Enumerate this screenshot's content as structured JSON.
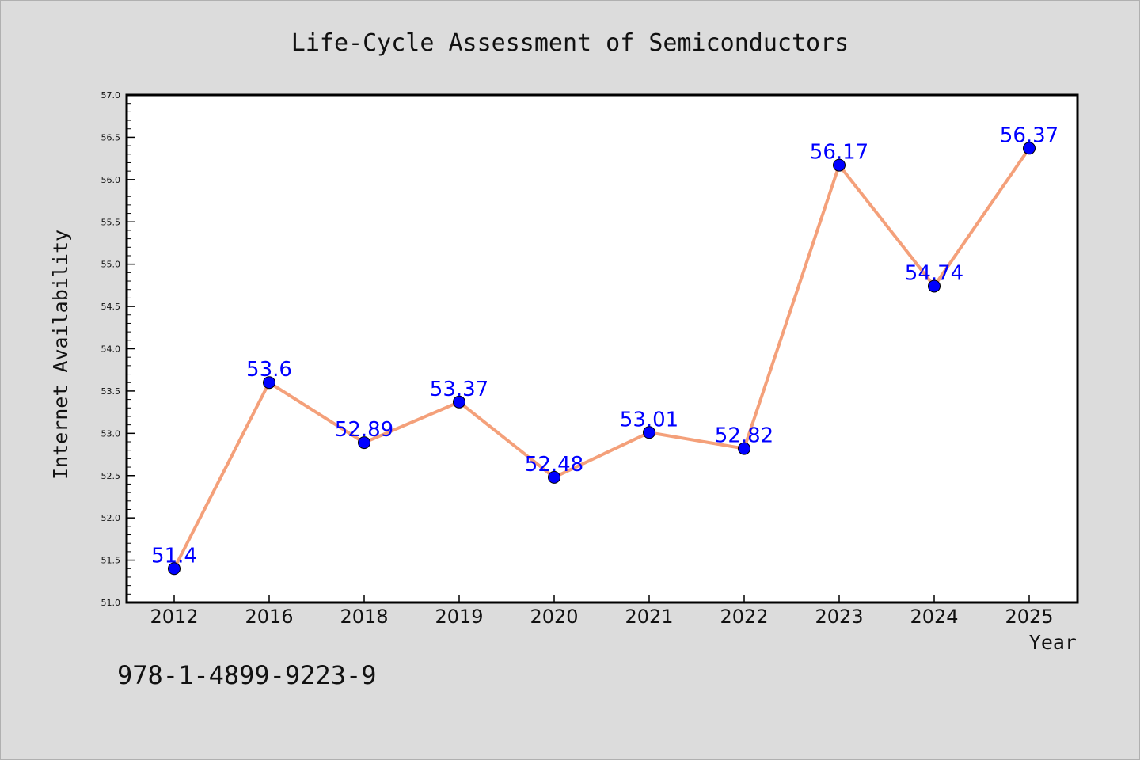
{
  "chart_data": {
    "type": "line",
    "title": "Life-Cycle Assessment of Semiconductors",
    "xlabel": "Year",
    "ylabel": "Internet Availability",
    "categories": [
      "2012",
      "2016",
      "2018",
      "2019",
      "2020",
      "2021",
      "2022",
      "2023",
      "2024",
      "2025"
    ],
    "values": [
      51.4,
      53.6,
      52.89,
      53.37,
      52.48,
      53.01,
      52.82,
      56.17,
      54.74,
      56.37
    ],
    "data_labels": [
      "51.4",
      "53.6",
      "52.89",
      "53.37",
      "52.48",
      "53.01",
      "52.82",
      "56.17",
      "54.74",
      "56.37"
    ],
    "ylim": [
      51.0,
      57.0
    ],
    "yticks": [
      "51.0",
      "51.5",
      "52.0",
      "52.5",
      "53.0",
      "53.5",
      "54.0",
      "54.5",
      "55.0",
      "55.5",
      "56.0",
      "56.5",
      "57.0"
    ],
    "grid": false,
    "legend": "none",
    "colors": {
      "line": "#f4a07a",
      "marker": "#0000ff",
      "label": "#0000ff",
      "background": "#dcdcdc",
      "plot_background": "#ffffff"
    }
  },
  "footer": {
    "isbn": "978-1-4899-9223-9"
  }
}
